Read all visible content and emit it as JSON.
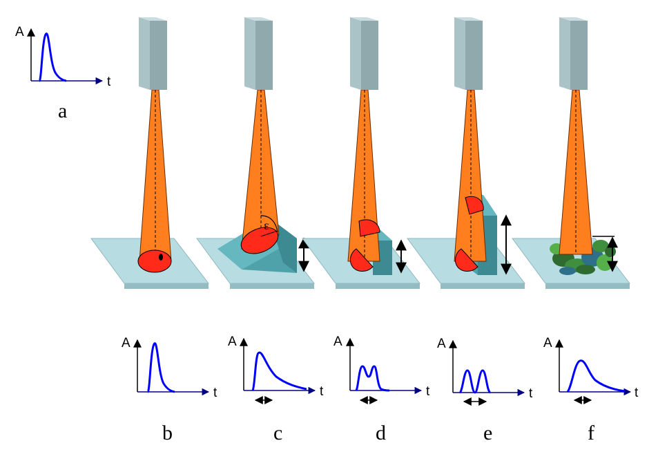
{
  "axis_labels": {
    "y": "A",
    "x": "t"
  },
  "epsilon_label": "ε",
  "colors": {
    "beam": "#ff7f1f",
    "beam_edge": "#6a2a00",
    "spot": "#ff2a1a",
    "source_front": "#8fa9ad",
    "source_side": "#a9c3c7",
    "source_top": "#c9dde0",
    "plate": "#b7dde2",
    "object_dark": "#3d8a92",
    "object_mid": "#4fa2aa",
    "object_light": "#66b8c0",
    "signal": "#0000ff",
    "vegetation": [
      "#2f6b2f",
      "#3f8f3f",
      "#2e6f8a",
      "#56b04a"
    ]
  },
  "panels": [
    {
      "id": "a",
      "label": "a",
      "scene": "pulse-reference"
    },
    {
      "id": "b",
      "label": "b",
      "scene": "flat-ground"
    },
    {
      "id": "c",
      "label": "c",
      "scene": "sloped-surface"
    },
    {
      "id": "d",
      "label": "d",
      "scene": "small-step"
    },
    {
      "id": "e",
      "label": "e",
      "scene": "tall-step"
    },
    {
      "id": "f",
      "label": "f",
      "scene": "vegetation"
    }
  ]
}
